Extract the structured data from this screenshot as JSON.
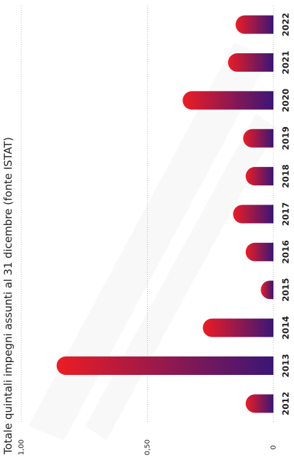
{
  "chart_data": {
    "type": "bar",
    "orientation": "horizontal-rotated",
    "title": "Totale quintali impegni assunti al 31 dicembre (fonte ISTAT)",
    "categories": [
      "2012",
      "2013",
      "2014",
      "2015",
      "2016",
      "2017",
      "2018",
      "2019",
      "2020",
      "2021",
      "2022"
    ],
    "values": [
      0.11,
      0.86,
      0.28,
      0.05,
      0.11,
      0.16,
      0.11,
      0.12,
      0.36,
      0.18,
      0.15
    ],
    "ylim": [
      0,
      1
    ],
    "yticks": [
      0,
      {
        "value": 0.5,
        "label": "0,50"
      },
      {
        "value": 1,
        "label": "1,00"
      }
    ],
    "grid": true,
    "color_start": "#ec1c24",
    "color_end": "#3b1677"
  }
}
